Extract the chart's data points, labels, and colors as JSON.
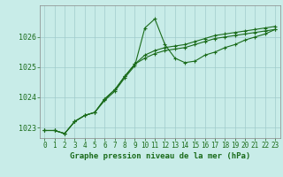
{
  "title": "Graphe pression niveau de la mer (hPa)",
  "bg_color": "#c8ece8",
  "grid_color": "#a0cccc",
  "line_color": "#1a6b1a",
  "spine_color": "#888888",
  "xlim": [
    -0.5,
    23.5
  ],
  "ylim": [
    1022.65,
    1027.05
  ],
  "xticks": [
    0,
    1,
    2,
    3,
    4,
    5,
    6,
    7,
    8,
    9,
    10,
    11,
    12,
    13,
    14,
    15,
    16,
    17,
    18,
    19,
    20,
    21,
    22,
    23
  ],
  "yticks": [
    1023,
    1024,
    1025,
    1026
  ],
  "series": [
    [
      1022.9,
      1022.9,
      1022.8,
      1023.2,
      1023.4,
      1023.5,
      1023.9,
      1024.2,
      1024.65,
      1025.05,
      1026.3,
      1026.6,
      1025.75,
      1025.3,
      1025.15,
      1025.2,
      1025.4,
      1025.5,
      1025.65,
      1025.75,
      1025.9,
      1026.0,
      1026.1,
      1026.25
    ],
    [
      1022.9,
      1022.9,
      1022.8,
      1023.2,
      1023.4,
      1023.5,
      1023.95,
      1024.25,
      1024.7,
      1025.1,
      1025.4,
      1025.55,
      1025.65,
      1025.7,
      1025.75,
      1025.85,
      1025.95,
      1026.05,
      1026.1,
      1026.15,
      1026.2,
      1026.25,
      1026.3,
      1026.35
    ],
    [
      1022.9,
      1022.9,
      1022.8,
      1023.2,
      1023.4,
      1023.5,
      1023.95,
      1024.25,
      1024.7,
      1025.1,
      1025.3,
      1025.45,
      1025.55,
      1025.6,
      1025.65,
      1025.75,
      1025.85,
      1025.95,
      1026.0,
      1026.05,
      1026.1,
      1026.15,
      1026.2,
      1026.25
    ]
  ],
  "figsize": [
    3.2,
    2.0
  ],
  "dpi": 100,
  "tick_fontsize": 5.5,
  "label_fontsize": 6.5
}
